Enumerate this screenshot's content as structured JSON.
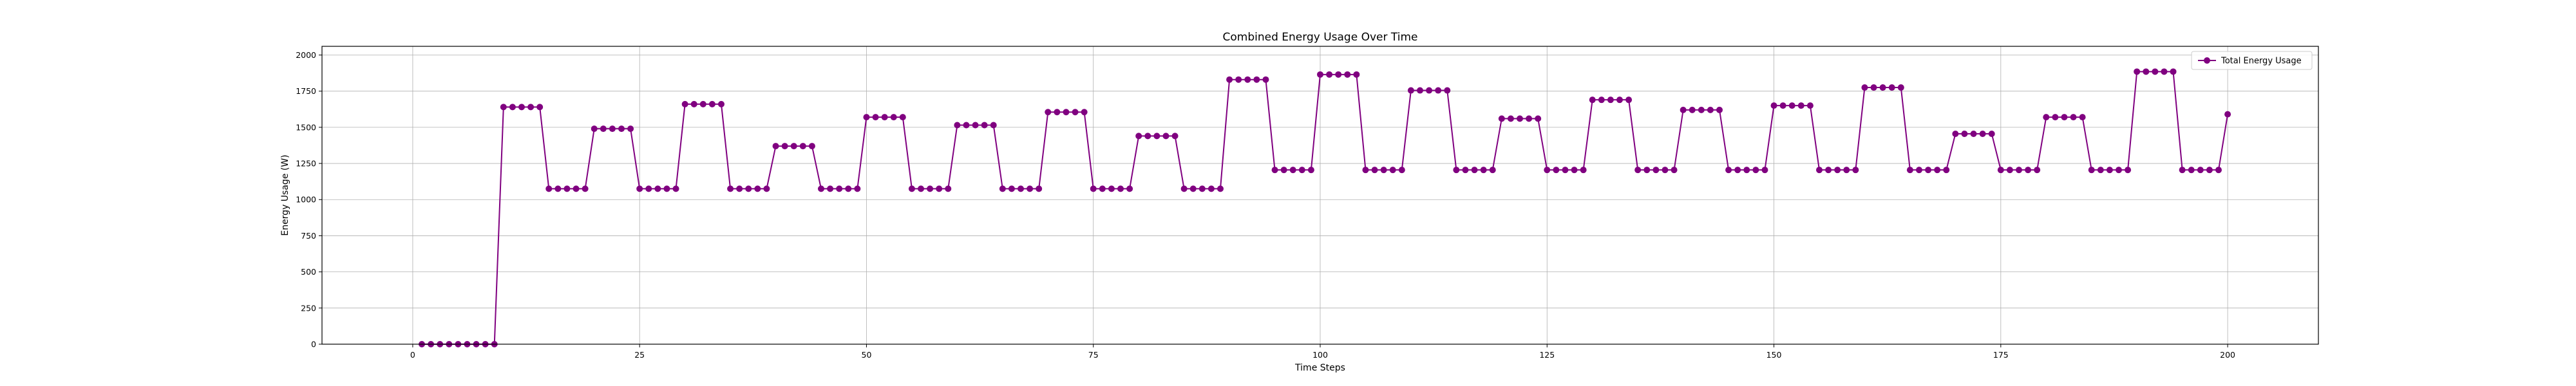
{
  "chart_data": {
    "type": "line",
    "title": "Combined Energy Usage Over Time",
    "xlabel": "Time Steps",
    "ylabel": "Energy Usage (W)",
    "xlim": [
      -10,
      210
    ],
    "ylim": [
      0,
      2060
    ],
    "xticks": [
      0,
      25,
      50,
      75,
      100,
      125,
      150,
      175,
      200
    ],
    "yticks": [
      0,
      250,
      500,
      750,
      1000,
      1250,
      1500,
      1750,
      2000
    ],
    "grid": true,
    "legend_position": "top-right",
    "series": [
      {
        "name": "Total Energy Usage",
        "color": "#800080",
        "marker": "circle",
        "segments": [
          {
            "start": 1,
            "end": 9,
            "value": 0
          },
          {
            "start": 10,
            "end": 14,
            "value": 1640
          },
          {
            "start": 15,
            "end": 19,
            "value": 1075
          },
          {
            "start": 20,
            "end": 24,
            "value": 1490
          },
          {
            "start": 25,
            "end": 29,
            "value": 1075
          },
          {
            "start": 30,
            "end": 34,
            "value": 1660
          },
          {
            "start": 35,
            "end": 39,
            "value": 1075
          },
          {
            "start": 40,
            "end": 44,
            "value": 1370
          },
          {
            "start": 45,
            "end": 49,
            "value": 1075
          },
          {
            "start": 50,
            "end": 54,
            "value": 1570
          },
          {
            "start": 55,
            "end": 59,
            "value": 1075
          },
          {
            "start": 60,
            "end": 64,
            "value": 1515
          },
          {
            "start": 65,
            "end": 69,
            "value": 1075
          },
          {
            "start": 70,
            "end": 74,
            "value": 1605
          },
          {
            "start": 75,
            "end": 79,
            "value": 1075
          },
          {
            "start": 80,
            "end": 84,
            "value": 1440
          },
          {
            "start": 85,
            "end": 89,
            "value": 1075
          },
          {
            "start": 90,
            "end": 94,
            "value": 1830
          },
          {
            "start": 95,
            "end": 99,
            "value": 1205
          },
          {
            "start": 100,
            "end": 104,
            "value": 1865
          },
          {
            "start": 105,
            "end": 109,
            "value": 1205
          },
          {
            "start": 110,
            "end": 114,
            "value": 1755
          },
          {
            "start": 115,
            "end": 119,
            "value": 1205
          },
          {
            "start": 120,
            "end": 124,
            "value": 1560
          },
          {
            "start": 125,
            "end": 129,
            "value": 1205
          },
          {
            "start": 130,
            "end": 134,
            "value": 1690
          },
          {
            "start": 135,
            "end": 139,
            "value": 1205
          },
          {
            "start": 140,
            "end": 144,
            "value": 1620
          },
          {
            "start": 145,
            "end": 149,
            "value": 1205
          },
          {
            "start": 150,
            "end": 154,
            "value": 1650
          },
          {
            "start": 155,
            "end": 159,
            "value": 1205
          },
          {
            "start": 160,
            "end": 164,
            "value": 1775
          },
          {
            "start": 165,
            "end": 169,
            "value": 1205
          },
          {
            "start": 170,
            "end": 174,
            "value": 1455
          },
          {
            "start": 175,
            "end": 179,
            "value": 1205
          },
          {
            "start": 180,
            "end": 184,
            "value": 1570
          },
          {
            "start": 185,
            "end": 189,
            "value": 1205
          },
          {
            "start": 190,
            "end": 194,
            "value": 1885
          },
          {
            "start": 195,
            "end": 199,
            "value": 1205
          },
          {
            "start": 200,
            "end": 200,
            "value": 1590
          }
        ]
      }
    ]
  }
}
